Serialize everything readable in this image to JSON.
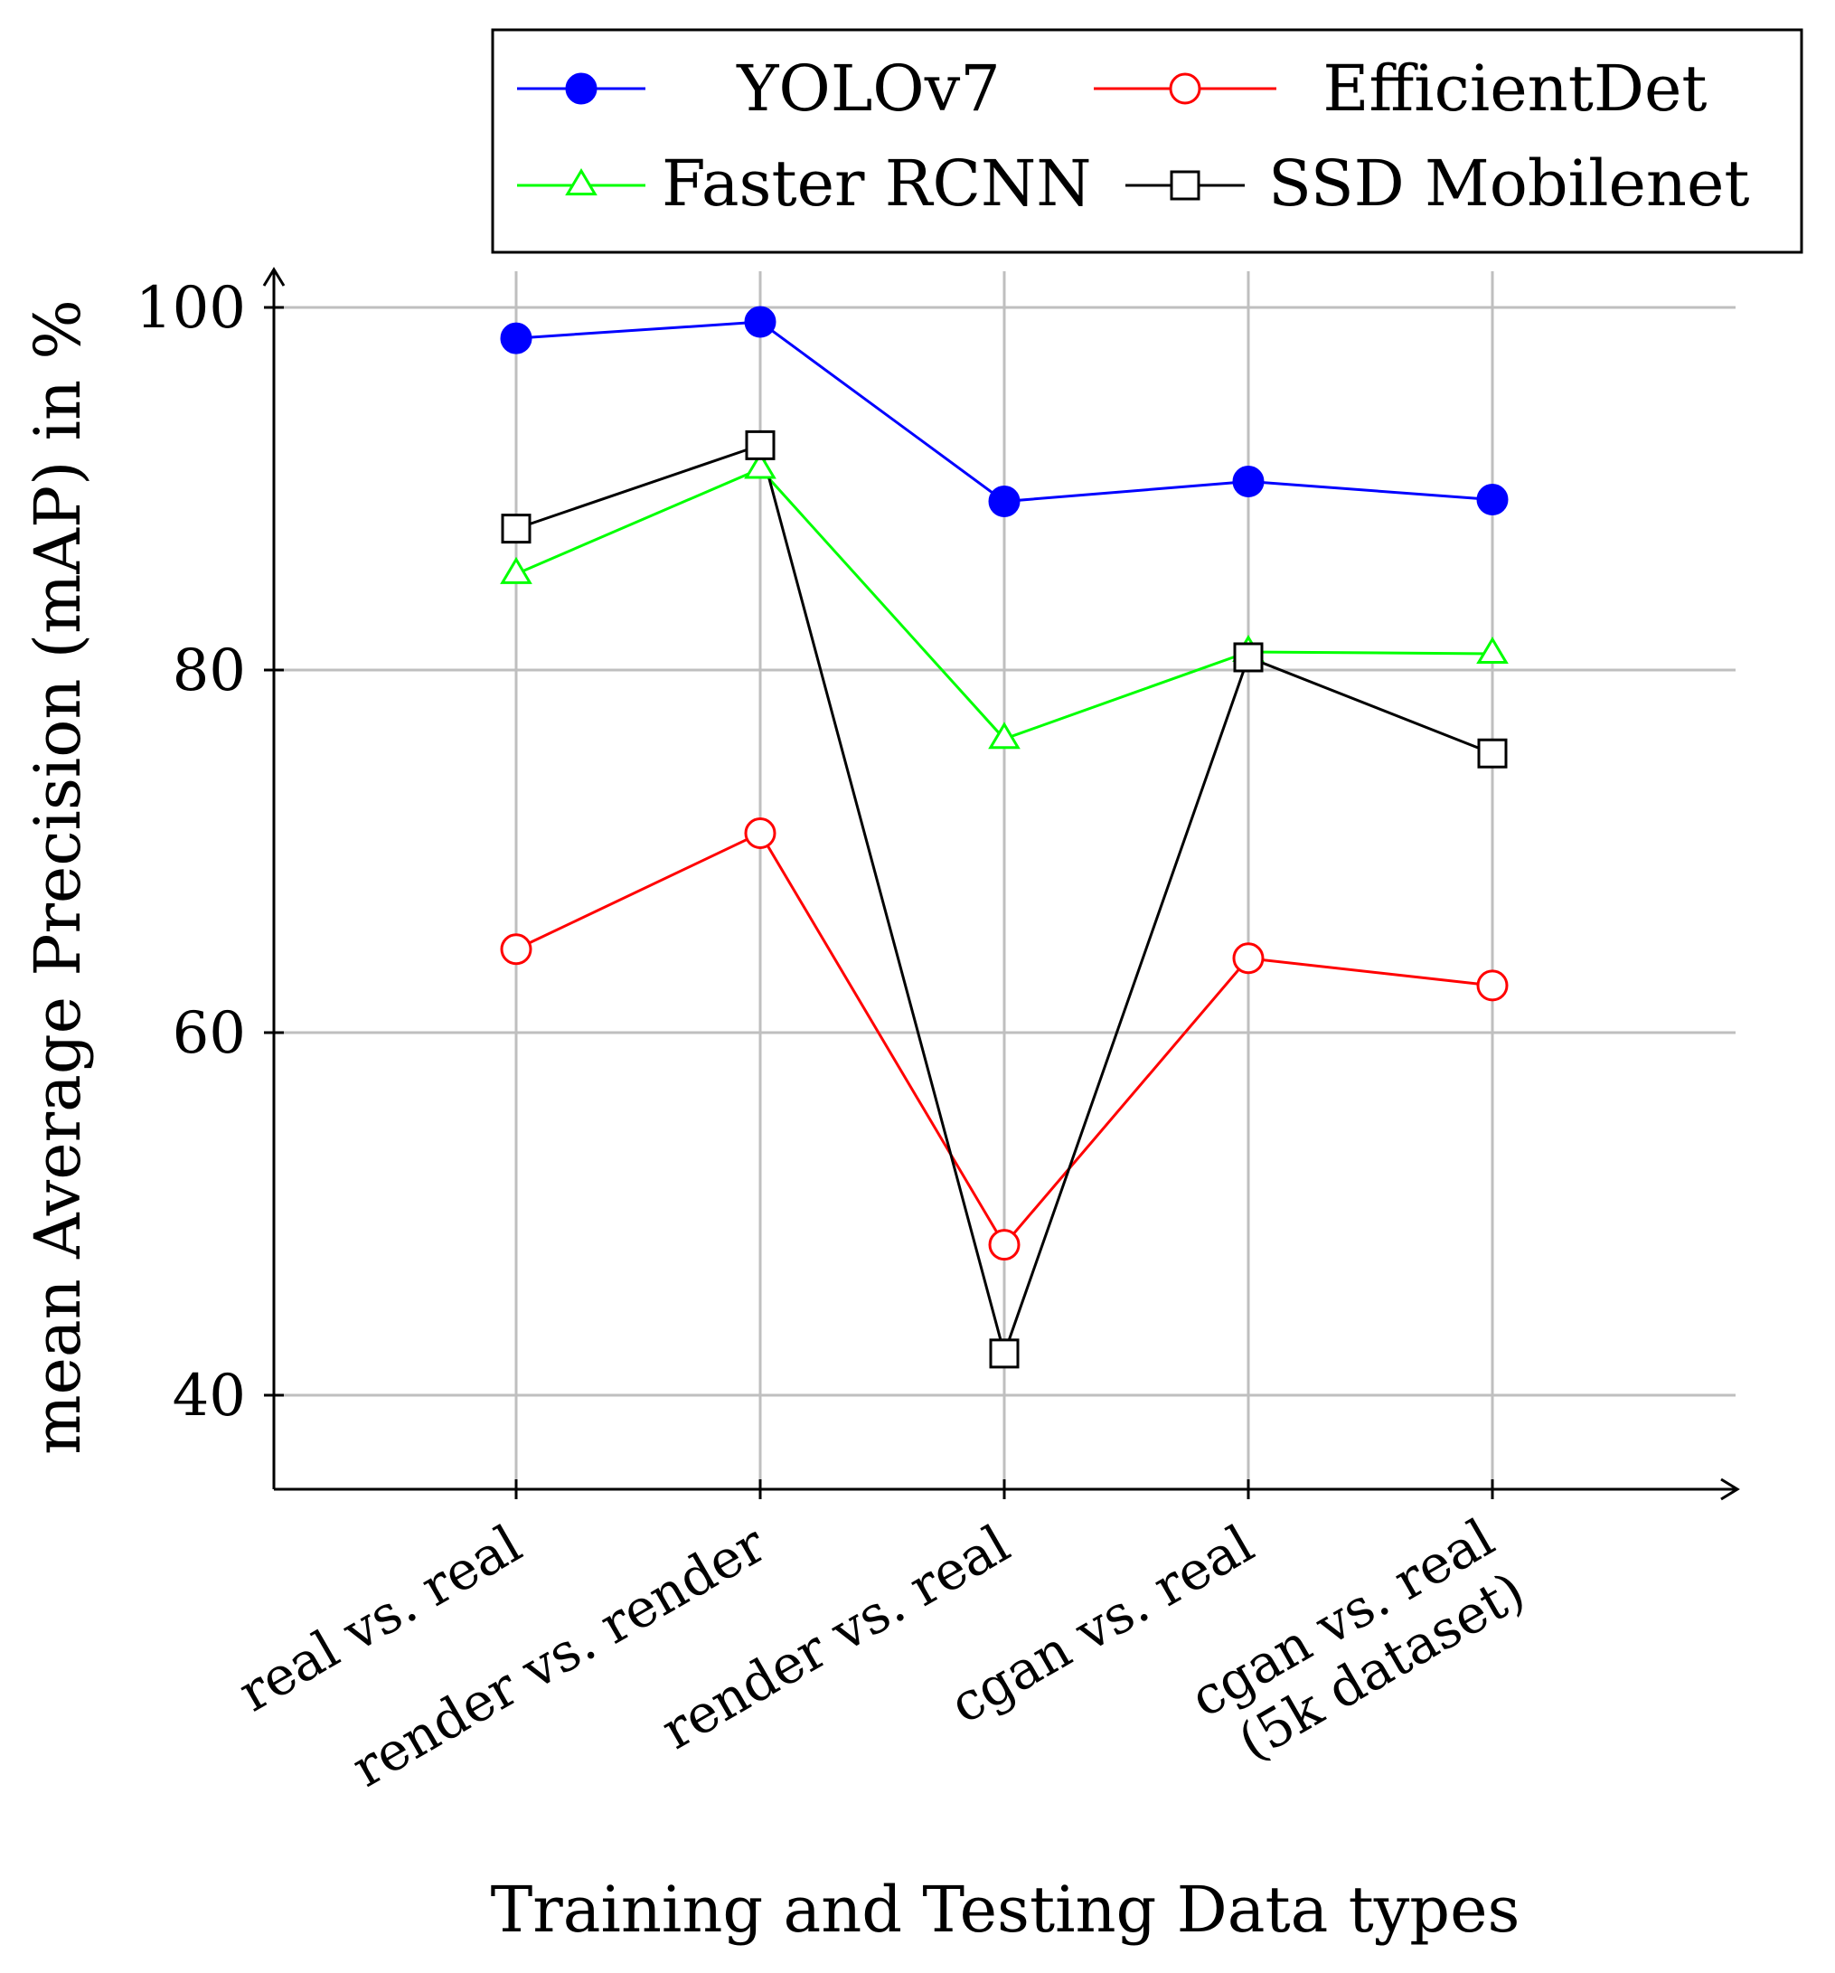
{
  "chart_data": {
    "type": "line",
    "title": "",
    "xlabel": "Training and Testing Data types",
    "ylabel": "mean Average Precision (mAP) in %",
    "ylim": [
      35,
      100
    ],
    "yticks": [
      40,
      60,
      80,
      100
    ],
    "grid": true,
    "legend_position": "top",
    "categories": [
      [
        "real vs. real"
      ],
      [
        "render vs. render"
      ],
      [
        "render vs. real"
      ],
      [
        "cgan vs. real"
      ],
      [
        "cgan vs. real",
        "(5k dataset)"
      ]
    ],
    "series": [
      {
        "name": "YOLOv7",
        "color": "#0000ff",
        "marker": "filled-circle",
        "values": [
          98.3,
          99.2,
          89.3,
          90.4,
          89.4
        ]
      },
      {
        "name": "EfficientDet",
        "color": "#ff0000",
        "marker": "open-circle",
        "values": [
          64.6,
          71.0,
          48.3,
          64.1,
          62.6
        ]
      },
      {
        "name": "Faster RCNN",
        "color": "#00ff00",
        "marker": "open-triangle",
        "values": [
          85.3,
          91.1,
          76.2,
          81.0,
          80.9
        ]
      },
      {
        "name": "SSD Mobilenet",
        "color": "#000000",
        "marker": "open-square",
        "values": [
          87.8,
          92.4,
          42.3,
          80.7,
          75.4
        ]
      }
    ]
  }
}
